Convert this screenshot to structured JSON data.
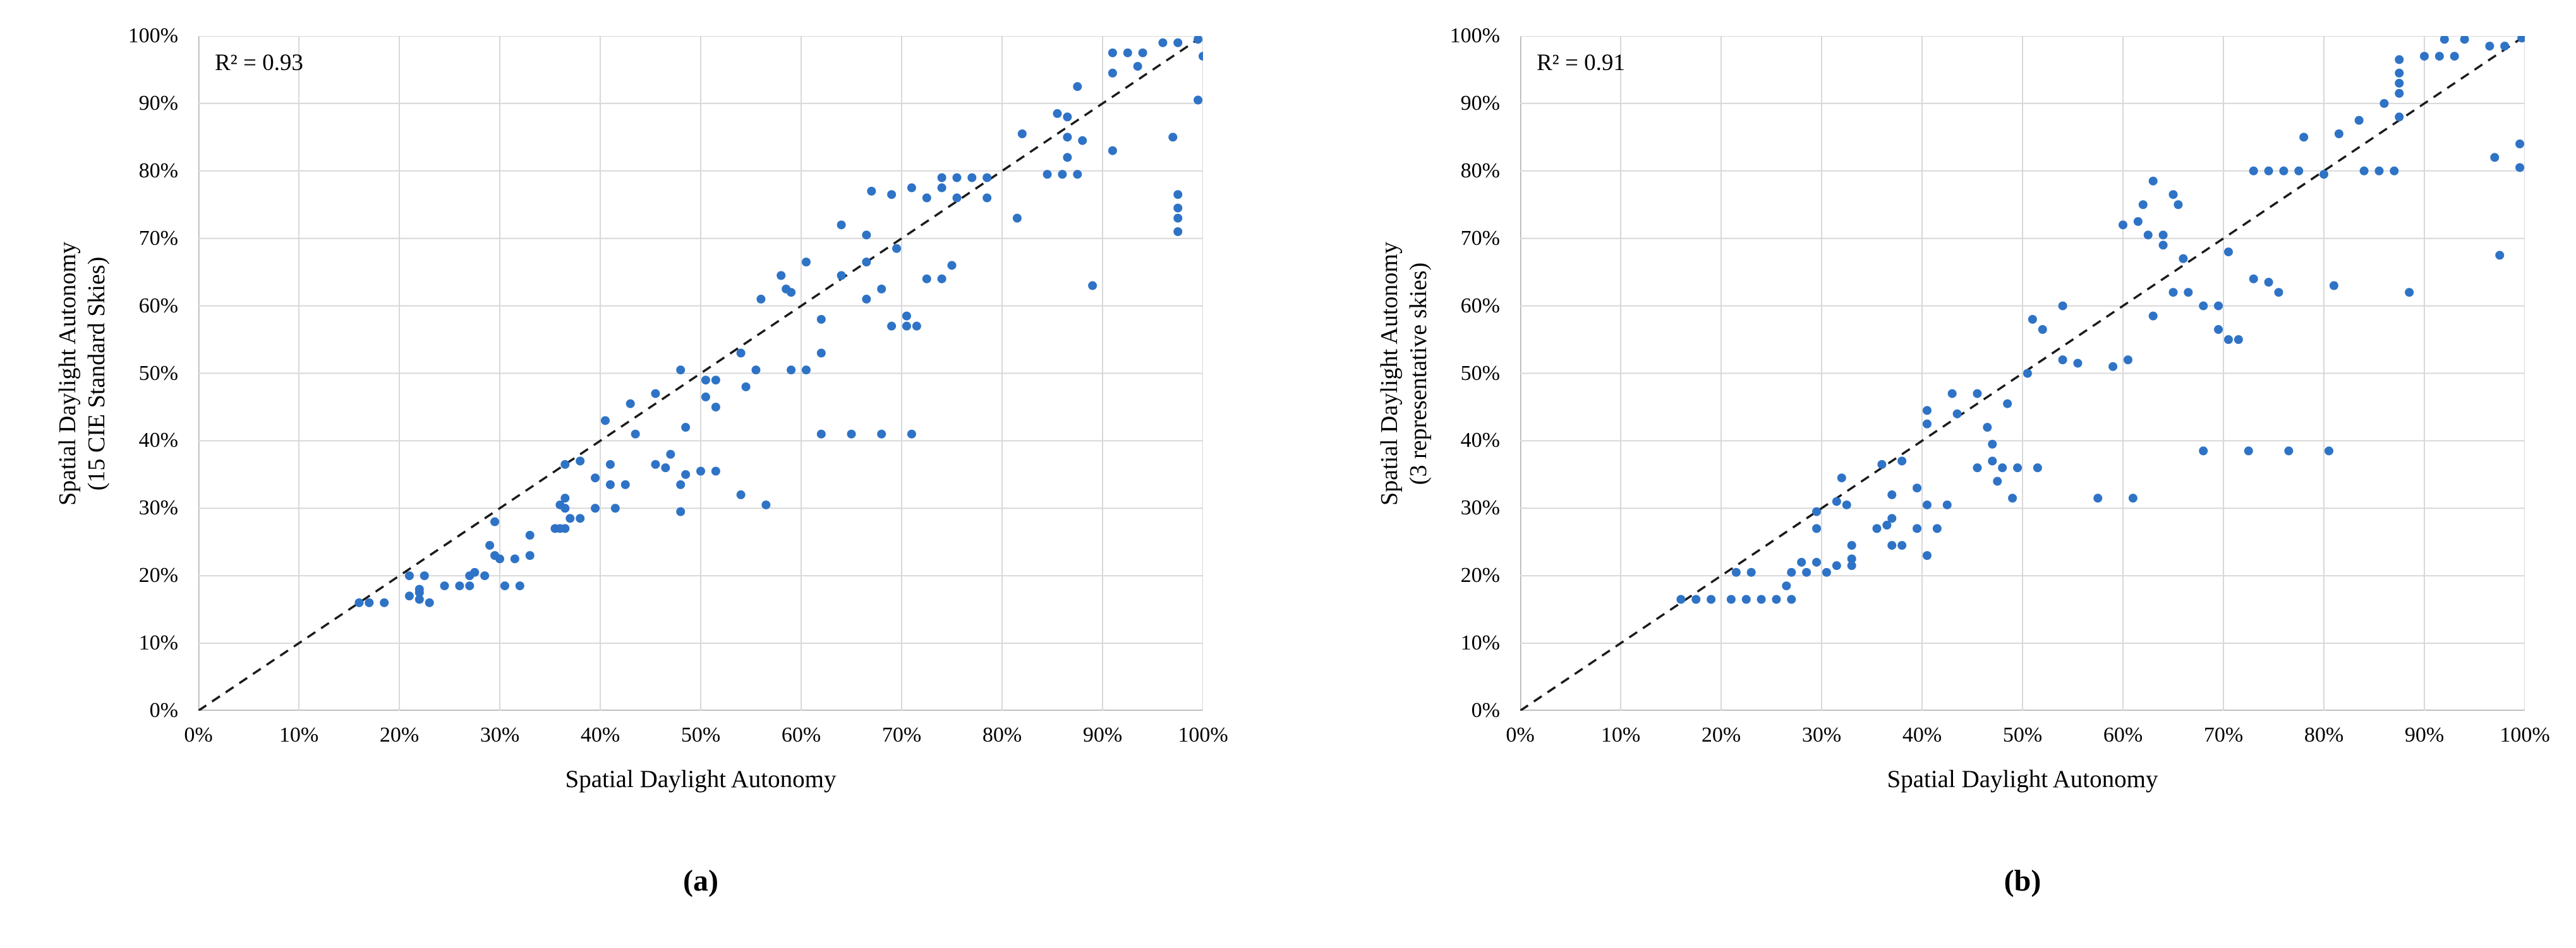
{
  "colors": {
    "point": "#2E73C6",
    "grid": "#D8D8D8",
    "axis": "#ACACAC",
    "diagonal": "#1A1A1A",
    "text": "#000000"
  },
  "chart_data": [
    {
      "type": "scatter",
      "panel": "a",
      "caption": "(a)",
      "r2_label": "R² = 0.93",
      "r_squared": 0.93,
      "xlabel": "Spatial Daylight Autonomy",
      "ylabel_line1": "Spatial Daylight Autonomy",
      "ylabel_line2": "(15 CIE Standard Skies)",
      "xlim": [
        0,
        100
      ],
      "ylim": [
        0,
        100
      ],
      "grid": true,
      "diagonal_reference_line": true,
      "ticks": [
        0,
        10,
        20,
        30,
        40,
        50,
        60,
        70,
        80,
        90,
        100
      ],
      "x_tick_labels": [
        "0%",
        "10%",
        "20%",
        "30%",
        "40%",
        "50%",
        "60%",
        "70%",
        "80%",
        "90%",
        "100%"
      ],
      "y_tick_labels": [
        "0%",
        "10%",
        "20%",
        "30%",
        "40%",
        "50%",
        "60%",
        "70%",
        "80%",
        "90%",
        "100%"
      ],
      "points": [
        [
          16,
          16
        ],
        [
          17,
          16
        ],
        [
          18.5,
          16
        ],
        [
          21,
          20
        ],
        [
          22.5,
          20
        ],
        [
          21,
          17
        ],
        [
          22,
          17.5
        ],
        [
          22,
          16.5
        ],
        [
          22,
          18
        ],
        [
          23,
          16
        ],
        [
          24.5,
          18.5
        ],
        [
          26,
          18.5
        ],
        [
          27,
          18.5
        ],
        [
          27,
          20
        ],
        [
          27.5,
          20.5
        ],
        [
          28.5,
          20
        ],
        [
          30.5,
          18.5
        ],
        [
          32,
          18.5
        ],
        [
          29.5,
          28
        ],
        [
          29,
          24.5
        ],
        [
          29.5,
          23
        ],
        [
          30,
          22.5
        ],
        [
          31.5,
          22.5
        ],
        [
          33,
          23
        ],
        [
          33,
          26
        ],
        [
          35.5,
          27
        ],
        [
          36,
          27
        ],
        [
          36.5,
          27
        ],
        [
          37,
          28.5
        ],
        [
          38,
          28.5
        ],
        [
          36,
          30.5
        ],
        [
          36.5,
          30
        ],
        [
          36.5,
          31.5
        ],
        [
          39.5,
          30
        ],
        [
          41.5,
          30
        ],
        [
          41,
          33.5
        ],
        [
          42.5,
          33.5
        ],
        [
          39.5,
          34.5
        ],
        [
          36.5,
          36.5
        ],
        [
          38,
          37
        ],
        [
          41,
          36.5
        ],
        [
          43,
          45.5
        ],
        [
          45.5,
          47
        ],
        [
          40.5,
          43
        ],
        [
          43.5,
          41
        ],
        [
          48.5,
          42
        ],
        [
          47,
          38
        ],
        [
          45.5,
          36.5
        ],
        [
          46.5,
          36
        ],
        [
          48.5,
          35
        ],
        [
          50,
          35.5
        ],
        [
          51.5,
          35.5
        ],
        [
          48,
          33.5
        ],
        [
          48,
          29.5
        ],
        [
          54,
          32
        ],
        [
          56.5,
          30.5
        ],
        [
          48,
          50.5
        ],
        [
          50.5,
          49
        ],
        [
          51.5,
          49
        ],
        [
          54,
          53
        ],
        [
          55.5,
          50.5
        ],
        [
          54.5,
          48
        ],
        [
          50.5,
          46.5
        ],
        [
          51.5,
          45
        ],
        [
          59,
          50.5
        ],
        [
          60.5,
          50.5
        ],
        [
          62,
          53
        ],
        [
          62,
          41
        ],
        [
          65,
          41
        ],
        [
          68,
          41
        ],
        [
          71,
          41
        ],
        [
          67,
          77
        ],
        [
          69,
          76.5
        ],
        [
          71,
          77.5
        ],
        [
          72.5,
          76
        ],
        [
          74,
          79
        ],
        [
          74,
          77.5
        ],
        [
          75.5,
          79
        ],
        [
          77,
          79
        ],
        [
          75.5,
          76
        ],
        [
          78.5,
          79
        ],
        [
          78.5,
          76
        ],
        [
          64,
          72
        ],
        [
          66.5,
          70.5
        ],
        [
          69.5,
          68.5
        ],
        [
          66.5,
          66.5
        ],
        [
          60.5,
          66.5
        ],
        [
          58,
          64.5
        ],
        [
          58.5,
          62.5
        ],
        [
          59,
          62
        ],
        [
          56,
          61
        ],
        [
          64,
          64.5
        ],
        [
          68,
          62.5
        ],
        [
          66.5,
          61
        ],
        [
          72.5,
          64
        ],
        [
          74,
          64
        ],
        [
          75,
          66
        ],
        [
          62,
          58
        ],
        [
          69,
          57
        ],
        [
          70.5,
          58.5
        ],
        [
          70.5,
          57
        ],
        [
          71.5,
          57
        ],
        [
          84.5,
          79.5
        ],
        [
          86,
          79.5
        ],
        [
          87.5,
          79.5
        ],
        [
          91,
          97.5
        ],
        [
          92.5,
          97.5
        ],
        [
          94,
          97.5
        ],
        [
          96,
          99
        ],
        [
          97.5,
          99
        ],
        [
          99.5,
          99.5
        ],
        [
          100,
          97
        ],
        [
          93.5,
          95.5
        ],
        [
          91,
          94.5
        ],
        [
          99.5,
          90.5
        ],
        [
          87.5,
          92.5
        ],
        [
          97,
          85
        ],
        [
          91,
          83
        ],
        [
          85.5,
          88.5
        ],
        [
          86.5,
          88
        ],
        [
          82,
          85.5
        ],
        [
          86.5,
          85
        ],
        [
          88,
          84.5
        ],
        [
          86.5,
          82
        ],
        [
          81.5,
          73
        ],
        [
          89,
          63
        ],
        [
          97.5,
          76.5
        ],
        [
          97.5,
          74.5
        ],
        [
          97.5,
          73
        ],
        [
          97.5,
          71
        ]
      ]
    },
    {
      "type": "scatter",
      "panel": "b",
      "caption": "(b)",
      "r2_label": "R² = 0.91",
      "r_squared": 0.91,
      "xlabel": "Spatial Daylight Autonomy",
      "ylabel_line1": "Spatial Daylight Autonomy",
      "ylabel_line2": "(3 representative skies)",
      "xlim": [
        0,
        100
      ],
      "ylim": [
        0,
        100
      ],
      "grid": true,
      "diagonal_reference_line": true,
      "ticks": [
        0,
        10,
        20,
        30,
        40,
        50,
        60,
        70,
        80,
        90,
        100
      ],
      "x_tick_labels": [
        "0%",
        "10%",
        "20%",
        "30%",
        "40%",
        "50%",
        "60%",
        "70%",
        "80%",
        "90%",
        "100%"
      ],
      "y_tick_labels": [
        "0%",
        "10%",
        "20%",
        "30%",
        "40%",
        "50%",
        "60%",
        "70%",
        "80%",
        "90%",
        "100%"
      ],
      "points": [
        [
          16,
          16.5
        ],
        [
          17.5,
          16.5
        ],
        [
          19,
          16.5
        ],
        [
          21,
          16.5
        ],
        [
          22.5,
          16.5
        ],
        [
          24,
          16.5
        ],
        [
          25.5,
          16.5
        ],
        [
          27,
          16.5
        ],
        [
          26.5,
          18.5
        ],
        [
          21.5,
          20.5
        ],
        [
          23,
          20.5
        ],
        [
          27,
          20.5
        ],
        [
          28.5,
          20.5
        ],
        [
          30.5,
          20.5
        ],
        [
          28,
          22
        ],
        [
          29.5,
          22
        ],
        [
          31.5,
          21.5
        ],
        [
          33,
          22.5
        ],
        [
          33,
          21.5
        ],
        [
          33,
          24.5
        ],
        [
          37,
          24.5
        ],
        [
          38,
          24.5
        ],
        [
          40.5,
          23
        ],
        [
          29.5,
          27
        ],
        [
          29.5,
          29.5
        ],
        [
          31.5,
          31
        ],
        [
          32.5,
          30.5
        ],
        [
          32,
          34.5
        ],
        [
          35.5,
          27
        ],
        [
          36.5,
          27.5
        ],
        [
          37,
          28.5
        ],
        [
          39.5,
          27
        ],
        [
          41.5,
          27
        ],
        [
          37,
          32
        ],
        [
          39.5,
          33
        ],
        [
          40.5,
          30.5
        ],
        [
          42.5,
          30.5
        ],
        [
          36,
          36.5
        ],
        [
          38,
          37
        ],
        [
          40.5,
          44.5
        ],
        [
          43.5,
          44
        ],
        [
          40.5,
          42.5
        ],
        [
          46.5,
          42
        ],
        [
          43,
          47
        ],
        [
          45.5,
          47
        ],
        [
          48.5,
          45.5
        ],
        [
          47,
          39.5
        ],
        [
          47,
          37
        ],
        [
          45.5,
          36
        ],
        [
          48,
          36
        ],
        [
          49.5,
          36
        ],
        [
          51.5,
          36
        ],
        [
          47.5,
          34
        ],
        [
          49,
          31.5
        ],
        [
          57.5,
          31.5
        ],
        [
          61,
          31.5
        ],
        [
          68,
          38.5
        ],
        [
          72.5,
          38.5
        ],
        [
          76.5,
          38.5
        ],
        [
          80.5,
          38.5
        ],
        [
          50.5,
          50
        ],
        [
          54,
          52
        ],
        [
          55.5,
          51.5
        ],
        [
          59,
          51
        ],
        [
          60.5,
          52
        ],
        [
          51,
          58
        ],
        [
          52,
          56.5
        ],
        [
          54,
          60
        ],
        [
          63,
          58.5
        ],
        [
          69.5,
          56.5
        ],
        [
          70.5,
          55
        ],
        [
          71.5,
          55
        ],
        [
          65,
          62
        ],
        [
          66.5,
          62
        ],
        [
          68,
          60
        ],
        [
          69.5,
          60
        ],
        [
          73,
          64
        ],
        [
          74.5,
          63.5
        ],
        [
          75.5,
          62
        ],
        [
          81,
          63
        ],
        [
          88.5,
          62
        ],
        [
          60,
          72
        ],
        [
          61.5,
          72.5
        ],
        [
          62,
          75
        ],
        [
          63,
          78.5
        ],
        [
          65,
          76.5
        ],
        [
          65.5,
          75
        ],
        [
          62.5,
          70.5
        ],
        [
          64,
          70.5
        ],
        [
          64,
          69
        ],
        [
          66,
          67
        ],
        [
          70.5,
          68
        ],
        [
          73,
          80
        ],
        [
          74.5,
          80
        ],
        [
          76,
          80
        ],
        [
          77.5,
          80
        ],
        [
          80,
          79.5
        ],
        [
          84,
          80
        ],
        [
          85.5,
          80
        ],
        [
          87,
          80
        ],
        [
          78,
          85
        ],
        [
          81.5,
          85.5
        ],
        [
          83.5,
          87.5
        ],
        [
          86,
          90
        ],
        [
          87.5,
          88
        ],
        [
          87.5,
          96.5
        ],
        [
          87.5,
          94.5
        ],
        [
          87.5,
          93
        ],
        [
          87.5,
          91.5
        ],
        [
          90,
          97
        ],
        [
          91.5,
          97
        ],
        [
          93,
          97
        ],
        [
          92,
          99.5
        ],
        [
          94,
          99.5
        ],
        [
          96.5,
          98.5
        ],
        [
          98,
          98.5
        ],
        [
          99.7,
          99.7
        ],
        [
          97,
          82
        ],
        [
          99.5,
          84
        ],
        [
          99.5,
          80.5
        ],
        [
          97.5,
          67.5
        ]
      ]
    }
  ]
}
